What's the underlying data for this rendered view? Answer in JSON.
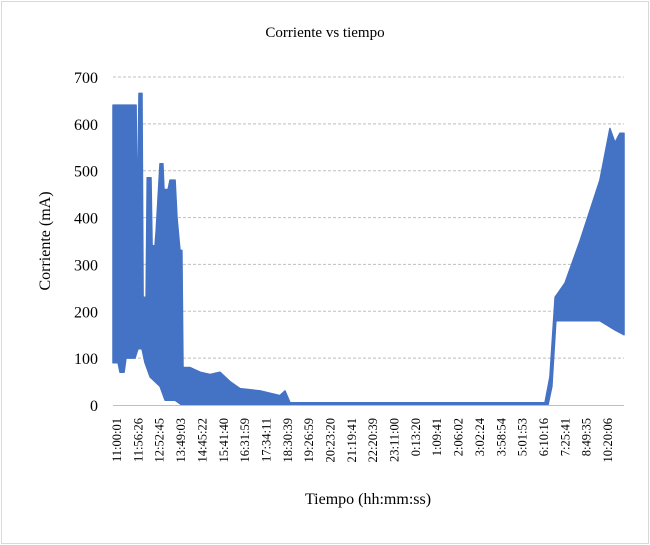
{
  "chart_data": {
    "type": "area",
    "title": "Corriente vs tiempo",
    "xlabel": "Tiempo (hh:mm:ss)",
    "ylabel": "Corriente (mA)",
    "ylim": [
      0,
      700
    ],
    "yticks": [
      0,
      100,
      200,
      300,
      400,
      500,
      600,
      700
    ],
    "grid": true,
    "xlim": [
      -0.19,
      23.75
    ],
    "categories": [
      "11:00:01",
      "11:56:26",
      "12:52:45",
      "13:49:03",
      "14:45:22",
      "15:41:40",
      "16:31:59",
      "17:34:11",
      "18:30:39",
      "19:26:59",
      "20:23:20",
      "21:19:41",
      "22:20:39",
      "23:11:00",
      "0:13:20",
      "1:09:41",
      "2:06:02",
      "3:02:24",
      "3:58:54",
      "5:01:53",
      "6:10:16",
      "7:25:41",
      "8:49:35",
      "10:20:06"
    ],
    "series": [
      {
        "name": "Corriente (mA)",
        "color": "#4472C4",
        "note": "oscillating signal represented as envelope; x in category-index units",
        "upper": [
          [
            -0.19,
            640
          ],
          [
            0.8,
            640
          ],
          [
            0.89,
            640
          ],
          [
            0.94,
            380
          ],
          [
            1.03,
            665
          ],
          [
            1.17,
            665
          ],
          [
            1.22,
            230
          ],
          [
            1.36,
            230
          ],
          [
            1.41,
            485
          ],
          [
            1.59,
            485
          ],
          [
            1.64,
            340
          ],
          [
            1.78,
            340
          ],
          [
            1.83,
            370
          ],
          [
            2.01,
            515
          ],
          [
            2.15,
            515
          ],
          [
            2.2,
            460
          ],
          [
            2.39,
            460
          ],
          [
            2.48,
            480
          ],
          [
            2.72,
            480
          ],
          [
            2.81,
            400
          ],
          [
            2.95,
            330
          ],
          [
            3.04,
            330
          ],
          [
            3.09,
            80
          ],
          [
            3.42,
            80
          ],
          [
            3.89,
            70
          ],
          [
            4.36,
            65
          ],
          [
            4.82,
            70
          ],
          [
            5.29,
            50
          ],
          [
            5.76,
            35
          ],
          [
            6.7,
            30
          ],
          [
            7.63,
            20
          ],
          [
            7.87,
            30
          ],
          [
            8.1,
            5
          ],
          [
            20.05,
            5
          ],
          [
            20.28,
            60
          ],
          [
            20.52,
            230
          ],
          [
            20.98,
            260
          ],
          [
            21.69,
            350
          ],
          [
            22.62,
            480
          ],
          [
            23.09,
            590
          ],
          [
            23.33,
            560
          ],
          [
            23.56,
            580
          ],
          [
            23.75,
            580
          ]
        ],
        "lower": [
          [
            -0.19,
            90
          ],
          [
            0.05,
            90
          ],
          [
            0.14,
            70
          ],
          [
            0.33,
            70
          ],
          [
            0.42,
            100
          ],
          [
            0.84,
            100
          ],
          [
            0.98,
            120
          ],
          [
            1.17,
            120
          ],
          [
            1.31,
            90
          ],
          [
            1.55,
            60
          ],
          [
            1.78,
            50
          ],
          [
            2.01,
            40
          ],
          [
            2.25,
            10
          ],
          [
            2.72,
            10
          ],
          [
            3.04,
            0
          ],
          [
            20.19,
            0
          ],
          [
            20.37,
            40
          ],
          [
            20.56,
            180
          ],
          [
            22.62,
            180
          ],
          [
            23.33,
            160
          ],
          [
            23.75,
            150
          ]
        ]
      }
    ]
  }
}
